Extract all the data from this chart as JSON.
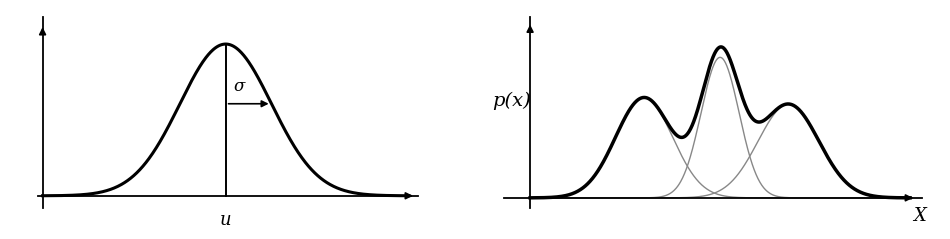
{
  "bg_color": "#ffffff",
  "line_color": "#000000",
  "thin_line_color": "#888888",
  "axis_color": "#000000",
  "gauss1": {
    "mu": 0.0,
    "sigma": 1.0
  },
  "mix_components": [
    {
      "mu": -1.5,
      "sigma": 0.75,
      "weight": 0.3
    },
    {
      "mu": 0.5,
      "sigma": 0.5,
      "weight": 0.42
    },
    {
      "mu": 2.3,
      "sigma": 0.8,
      "weight": 0.28
    }
  ],
  "left_xlabel": "u",
  "left_sigma_label": "σ",
  "right_xlabel": "X",
  "right_ylabel": "p(x)",
  "fig_width": 9.5,
  "fig_height": 2.39
}
